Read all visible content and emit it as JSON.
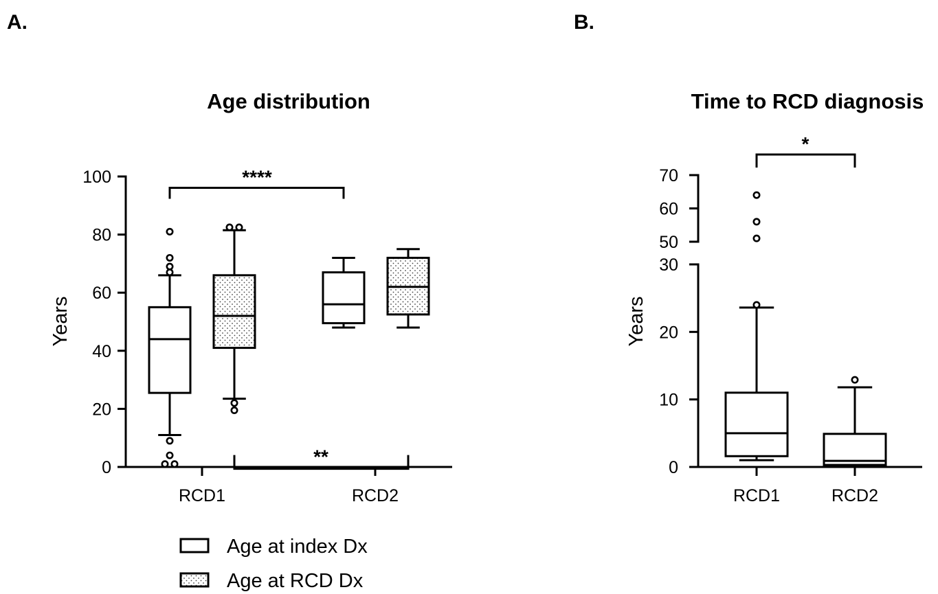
{
  "panels": {
    "a": {
      "label": "A."
    },
    "b": {
      "label": "B."
    }
  },
  "legend": {
    "items": [
      {
        "label": "Age at index Dx",
        "pattern": "open"
      },
      {
        "label": "Age at RCD Dx",
        "pattern": "dotted"
      }
    ]
  },
  "chart_data": [
    {
      "type": "box",
      "title": "Age distribution",
      "ylabel": "Years",
      "xlabel": "",
      "ylim": [
        0,
        100
      ],
      "yticks": [
        0,
        20,
        40,
        60,
        80,
        100
      ],
      "categories": [
        "RCD1",
        "RCD2"
      ],
      "series": [
        {
          "name": "Age at index Dx",
          "pattern": "open",
          "boxes": [
            {
              "category": "RCD1",
              "whisker_low": 11,
              "q1": 25.5,
              "median": 44,
              "q3": 55,
              "whisker_high": 66,
              "outliers": [
                81,
                72,
                69,
                67,
                9,
                4,
                1,
                1
              ]
            },
            {
              "category": "RCD2",
              "whisker_low": 48,
              "q1": 49.5,
              "median": 56,
              "q3": 67,
              "whisker_high": 72,
              "outliers": []
            }
          ]
        },
        {
          "name": "Age at RCD Dx",
          "pattern": "dotted",
          "boxes": [
            {
              "category": "RCD1",
              "whisker_low": 23.5,
              "q1": 41,
              "median": 52,
              "q3": 66,
              "whisker_high": 81.5,
              "outliers": [
                82.5,
                82.5,
                22,
                19.5
              ]
            },
            {
              "category": "RCD2",
              "whisker_low": 48,
              "q1": 52.5,
              "median": 62,
              "q3": 72,
              "whisker_high": 75,
              "outliers": []
            }
          ]
        }
      ],
      "annotations": [
        {
          "text": "****",
          "from": "RCD1 Age at index Dx",
          "to": "RCD2 Age at index Dx",
          "y": 98
        },
        {
          "text": "**",
          "from": "RCD1 Age at RCD Dx",
          "to": "RCD2 Age at RCD Dx",
          "y": 6
        }
      ]
    },
    {
      "type": "box",
      "title": "Time to RCD diagnosis",
      "ylabel": "Years",
      "xlabel": "",
      "broken_axis": {
        "lower": [
          0,
          30
        ],
        "upper": [
          50,
          70
        ]
      },
      "yticks": [
        0,
        10,
        20,
        30,
        50,
        60,
        70
      ],
      "categories": [
        "RCD1",
        "RCD2"
      ],
      "series": [
        {
          "name": "",
          "pattern": "open",
          "boxes": [
            {
              "category": "RCD1",
              "whisker_low": 1,
              "q1": 1.6,
              "median": 5,
              "q3": 11,
              "whisker_high": 23.6,
              "outliers": [
                64,
                56,
                51,
                24
              ]
            },
            {
              "category": "RCD2",
              "whisker_low": 0.2,
              "q1": 0.3,
              "median": 0.9,
              "q3": 4.9,
              "whisker_high": 11.8,
              "outliers": [
                12.9
              ]
            }
          ]
        }
      ],
      "annotations": [
        {
          "text": "*",
          "from": "RCD1",
          "to": "RCD2",
          "y": 70
        }
      ]
    }
  ]
}
